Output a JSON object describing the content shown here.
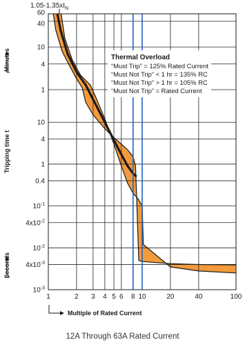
{
  "chart_data": {
    "type": "line",
    "title": "Thermal Overload",
    "x_axis": {
      "label": "Multiple of Rated Current",
      "scale": "log",
      "range": [
        1,
        100
      ],
      "ticks": [
        {
          "value": 1,
          "label": "1"
        },
        {
          "value": 2,
          "label": "2"
        },
        {
          "value": 3,
          "label": "3"
        },
        {
          "value": 4,
          "label": "4"
        },
        {
          "value": 5,
          "label": "5"
        },
        {
          "value": 6,
          "label": "6"
        },
        {
          "value": 8,
          "label": "8"
        },
        {
          "value": 10,
          "label": "10"
        },
        {
          "value": 20,
          "label": "20"
        },
        {
          "value": 40,
          "label": "40"
        },
        {
          "value": 100,
          "label": "100"
        }
      ],
      "top_label": "1.05-1.35xI",
      "top_label_subscript": "N"
    },
    "y_axis": {
      "label": "Tripping time t",
      "scale": "log",
      "minutes_section": {
        "label": "Minutes",
        "range": [
          1,
          60
        ],
        "ticks": [
          {
            "value": 60,
            "label": "60"
          },
          {
            "value": 40,
            "label": "40"
          },
          {
            "value": 10,
            "label": "10"
          },
          {
            "value": 4,
            "label": "4"
          },
          {
            "value": 1,
            "label": "1"
          }
        ]
      },
      "seconds_section": {
        "label": "Seconds",
        "range": [
          0.001,
          10
        ],
        "ticks": [
          {
            "value": 10,
            "label": "10"
          },
          {
            "value": 4,
            "label": "4"
          },
          {
            "value": 1,
            "label": "1"
          },
          {
            "value": 0.4,
            "label": "0.4"
          },
          {
            "value": 0.1,
            "label": "10",
            "sup": "-1"
          },
          {
            "value": 0.04,
            "label": "4x10",
            "sup": "-2"
          },
          {
            "value": 0.01,
            "label": "10",
            "sup": "-2"
          },
          {
            "value": 0.004,
            "label": "4x10",
            "sup": "-3"
          },
          {
            "value": 0.001,
            "label": "10",
            "sup": "-3"
          }
        ]
      }
    },
    "band": {
      "upper_boundary": [
        {
          "x": 1.13,
          "minutes": 60
        },
        {
          "x": 1.2,
          "minutes": 25
        },
        {
          "x": 1.4,
          "minutes": 8
        },
        {
          "x": 1.7,
          "minutes": 3.5
        },
        {
          "x": 2.0,
          "minutes": 1.8
        },
        {
          "x": 2.3,
          "minutes": 1.1
        },
        {
          "x": 2.5,
          "seconds": 30
        },
        {
          "x": 3,
          "seconds": 15
        },
        {
          "x": 4,
          "seconds": 7
        },
        {
          "x": 5,
          "seconds": 4.3
        },
        {
          "x": 6,
          "seconds": 3
        },
        {
          "x": 7,
          "seconds": 2.2
        },
        {
          "x": 8,
          "seconds": 1.5
        },
        {
          "x": 8.5,
          "seconds": 0.9
        },
        {
          "x": 9.2,
          "seconds": 0.005
        },
        {
          "x": 10,
          "seconds": 0.0047
        },
        {
          "x": 20,
          "seconds": 0.0042
        },
        {
          "x": 40,
          "seconds": 0.004
        },
        {
          "x": 100,
          "seconds": 0.0039
        }
      ],
      "lower_boundary": [
        {
          "x": 1.37,
          "minutes": 60
        },
        {
          "x": 1.5,
          "minutes": 16
        },
        {
          "x": 1.8,
          "minutes": 5
        },
        {
          "x": 2.2,
          "minutes": 2.2
        },
        {
          "x": 2.8,
          "minutes": 1.3
        },
        {
          "x": 3.2,
          "seconds": 40
        },
        {
          "x": 4,
          "seconds": 12
        },
        {
          "x": 5,
          "seconds": 3
        },
        {
          "x": 6,
          "seconds": 0.9
        },
        {
          "x": 7,
          "seconds": 0.35
        },
        {
          "x": 8,
          "seconds": 0.2
        },
        {
          "x": 9,
          "seconds": 0.15
        },
        {
          "x": 10,
          "seconds": 0.1
        },
        {
          "x": 10.3,
          "seconds": 0.012
        },
        {
          "x": 20,
          "seconds": 0.0035
        },
        {
          "x": 40,
          "seconds": 0.0028
        },
        {
          "x": 100,
          "seconds": 0.0025
        }
      ]
    },
    "center_curve": [
      {
        "x": 1.25,
        "minutes": 60
      },
      {
        "x": 1.35,
        "minutes": 25
      },
      {
        "x": 1.6,
        "minutes": 7
      },
      {
        "x": 2.0,
        "minutes": 2.6
      },
      {
        "x": 2.5,
        "minutes": 1.3
      },
      {
        "x": 3,
        "seconds": 35
      },
      {
        "x": 4,
        "seconds": 10
      },
      {
        "x": 5,
        "seconds": 3.7
      },
      {
        "x": 6,
        "seconds": 1.7
      },
      {
        "x": 7,
        "seconds": 0.9
      },
      {
        "x": 8,
        "seconds": 0.6
      },
      {
        "x": 8.7,
        "seconds": 0.5
      }
    ],
    "vertical_markers": [
      {
        "x": 8,
        "color": "#1e63c8"
      },
      {
        "x": 10,
        "color": "#1e63c8"
      }
    ],
    "legend": {
      "title": "Thermal Overload",
      "lines": [
        "“Must Trip” = 125% Rated Current",
        "“Must Not Trip” < 1 hr = 135% RC",
        "“Must Not Trip” > 1 hr = 105% RC",
        "“Must Not Trip” = Rated Current"
      ]
    },
    "colors": {
      "band_fill": "#f39a3c",
      "band_edge": "#1a1a1a",
      "center_line": "#1a1a1a",
      "marker": "#1e63c8",
      "grid": "#222222"
    },
    "caption": "12A Through 63A Rated Current"
  }
}
